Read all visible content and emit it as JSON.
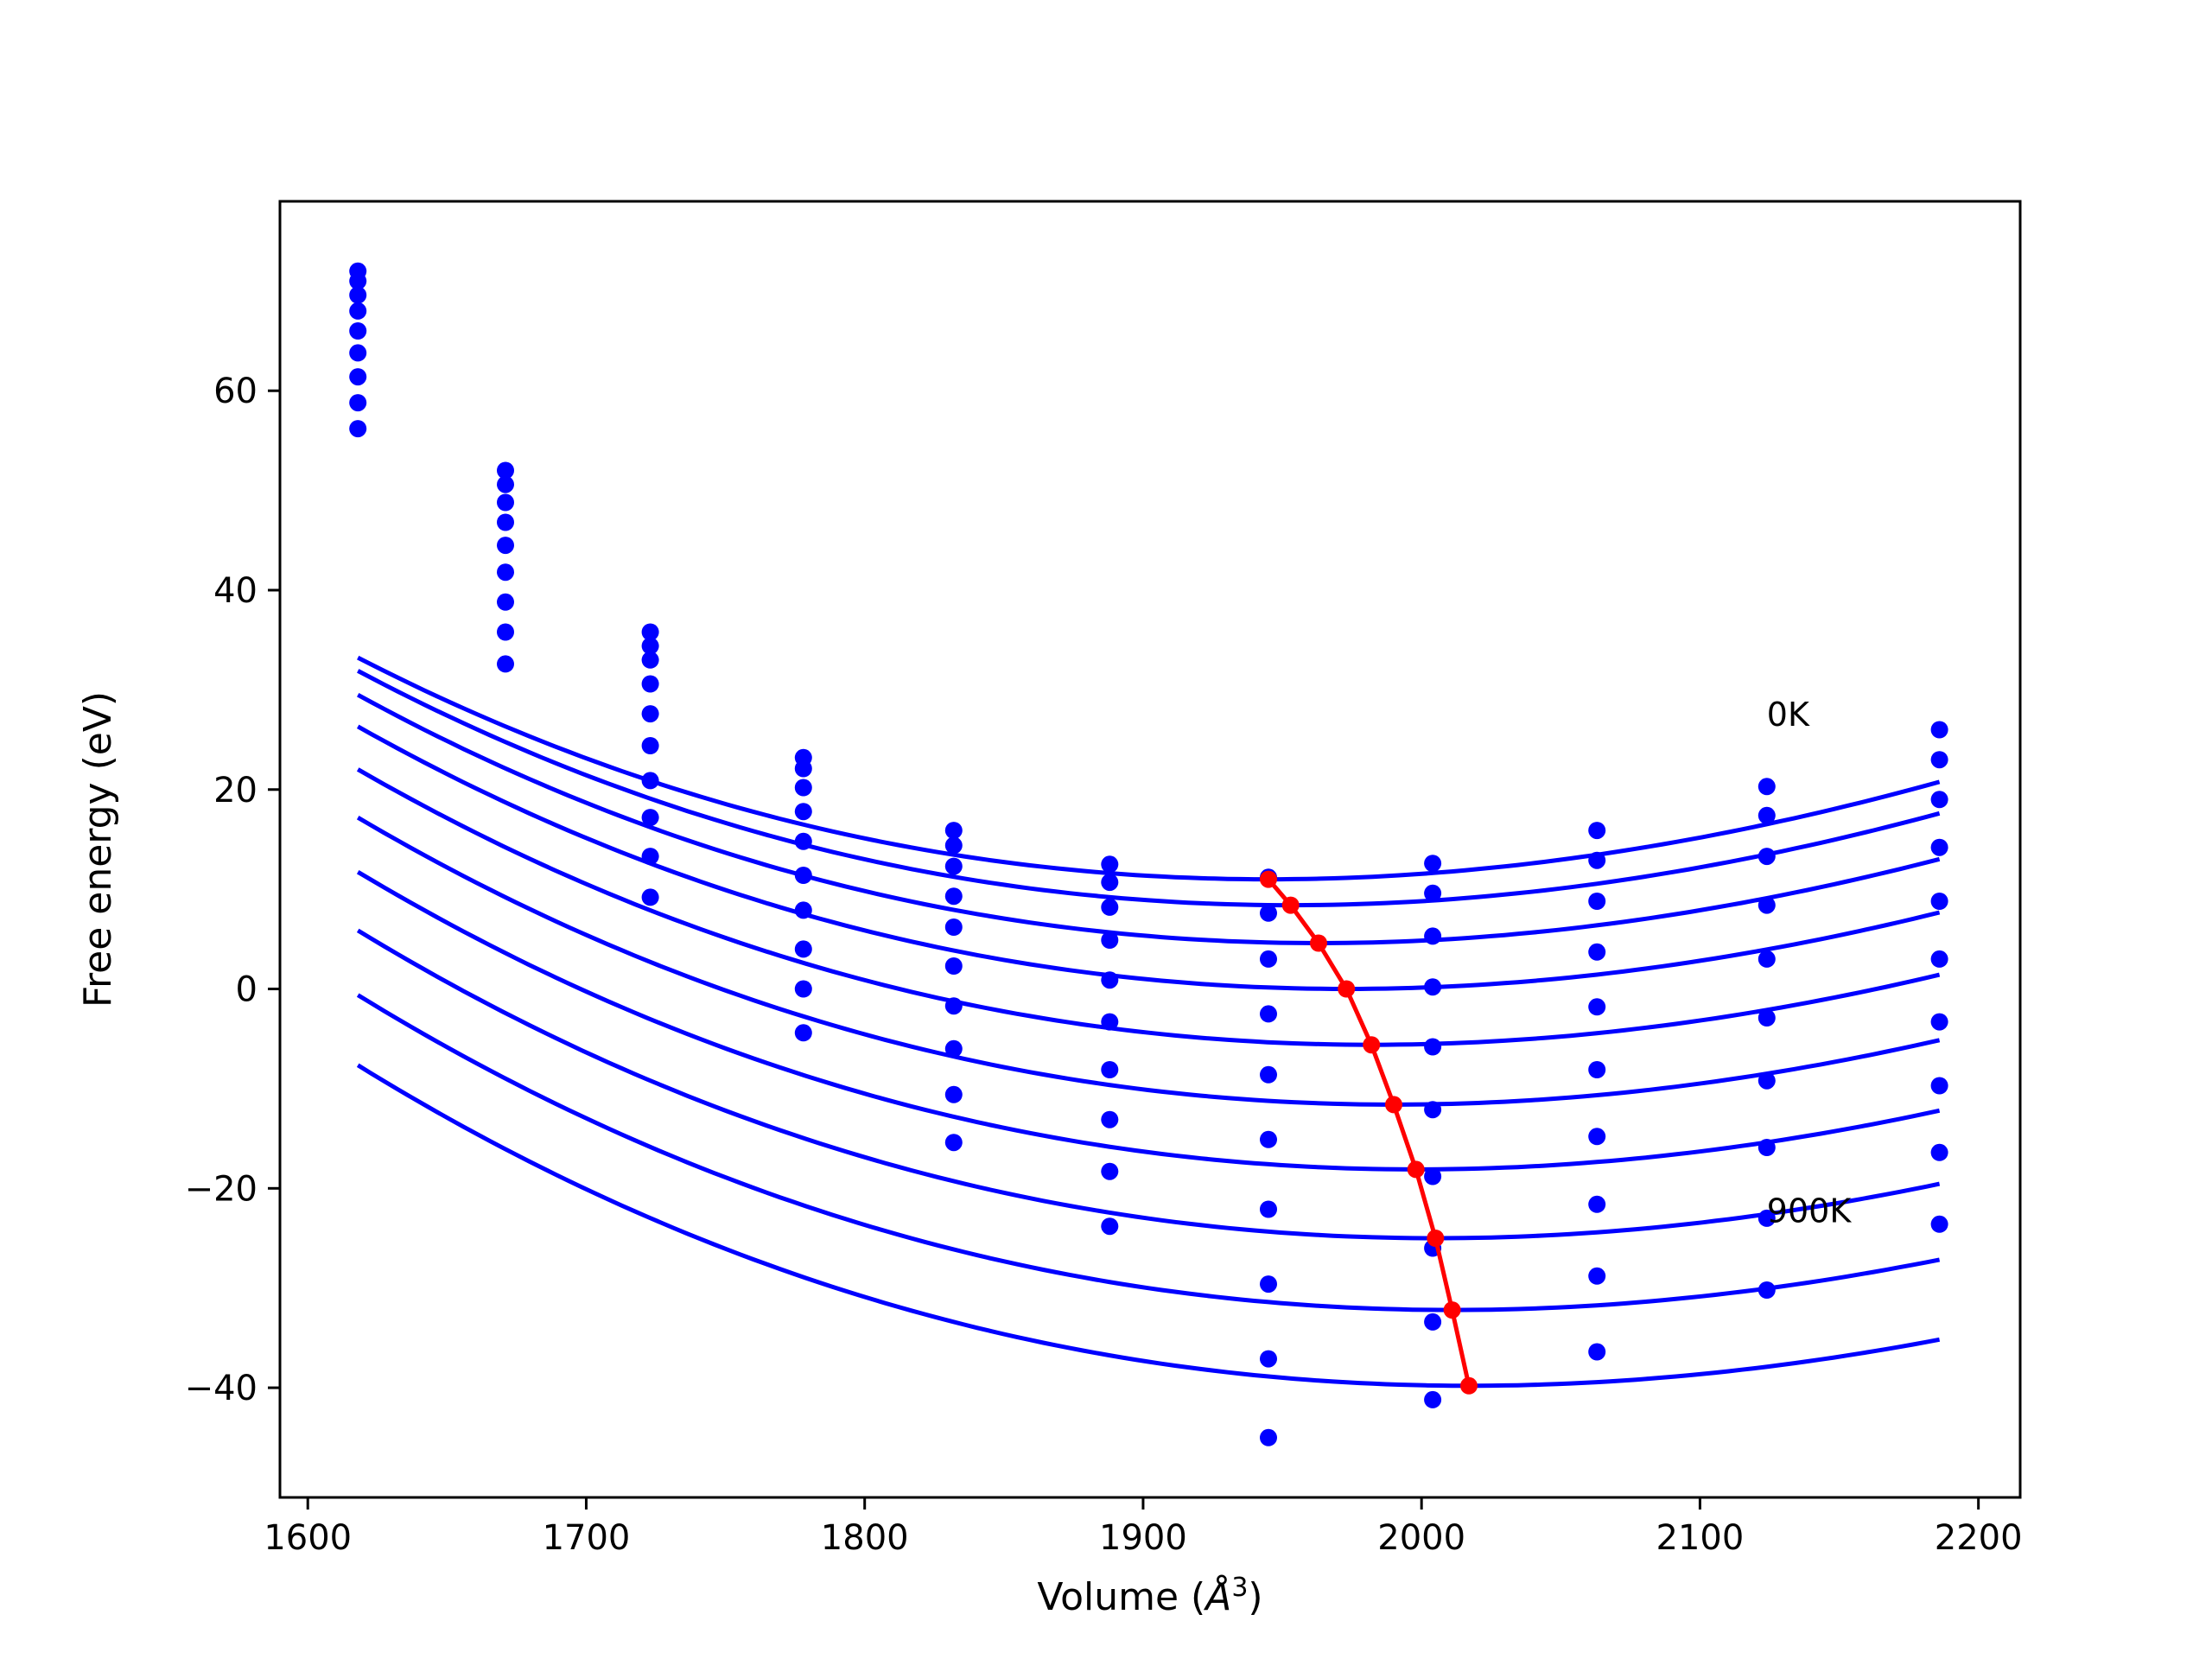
{
  "chart_data": {
    "type": "line",
    "title": "",
    "xlabel_text": "Volume (",
    "xlabel_unit": "Å",
    "xlabel_exp": "3",
    "xlabel_close": ")",
    "ylabel": "Free energy (eV)",
    "xlim": [
      1590,
      2215
    ],
    "ylim": [
      -51,
      79
    ],
    "xticks": [
      1600,
      1700,
      1800,
      1900,
      2000,
      2100,
      2200
    ],
    "yticks": [
      -40,
      -20,
      0,
      20,
      40,
      60
    ],
    "grid": false,
    "curve_color": "#0000ff",
    "min_color": "#ff0000",
    "volumes": [
      1618,
      1671,
      1723,
      1778,
      1832,
      1888,
      1945,
      2004,
      2063,
      2124,
      2186
    ],
    "series": [
      {
        "points": [
          72.0,
          52.0,
          35.8,
          23.2,
          15.9,
          12.5,
          11.2,
          12.6,
          15.9,
          20.3,
          26.0
        ]
      },
      {
        "points": [
          71.0,
          50.6,
          34.4,
          22.1,
          14.4,
          10.7,
          7.6,
          9.6,
          12.9,
          17.4,
          23.0
        ]
      },
      {
        "points": [
          69.6,
          48.8,
          33.0,
          20.2,
          12.3,
          8.2,
          3.0,
          5.3,
          8.8,
          13.3,
          19.0
        ]
      },
      {
        "points": [
          68.0,
          46.8,
          30.6,
          17.8,
          9.3,
          4.9,
          -2.5,
          0.2,
          3.7,
          8.4,
          14.2
        ]
      },
      {
        "points": [
          66.0,
          44.5,
          27.6,
          14.8,
          6.2,
          0.9,
          -8.6,
          -5.8,
          -1.8,
          3.0,
          8.8
        ]
      },
      {
        "points": [
          63.8,
          41.8,
          24.4,
          11.4,
          2.3,
          -3.3,
          -15.1,
          -12.1,
          -8.1,
          -2.9,
          3.0
        ]
      },
      {
        "points": [
          61.4,
          38.8,
          20.9,
          7.9,
          -1.7,
          -8.1,
          -22.1,
          -18.8,
          -14.8,
          -9.2,
          -3.3
        ]
      },
      {
        "points": [
          58.8,
          35.8,
          17.2,
          4.0,
          -6.0,
          -13.1,
          -29.6,
          -26.0,
          -21.6,
          -15.9,
          -9.7
        ]
      },
      {
        "points": [
          56.2,
          32.6,
          13.3,
          0.0,
          -10.6,
          -18.3,
          -37.1,
          -33.4,
          -28.8,
          -23.0,
          -16.4
        ]
      },
      {
        "points": [
          null,
          null,
          9.2,
          -4.4,
          -15.4,
          -23.8,
          -45.0,
          -41.2,
          -36.4,
          -30.2,
          -23.6
        ]
      }
    ],
    "fit_curves": [
      {
        "v0": 1945,
        "e0": 11.0,
        "a": 0.000185,
        "b": -7e-08
      },
      {
        "v0": 1953,
        "e0": 8.4,
        "a": 0.000186,
        "b": -7e-08
      },
      {
        "v0": 1963,
        "e0": 4.6,
        "a": 0.000185,
        "b": -7e-08
      },
      {
        "v0": 1973,
        "e0": 0.0,
        "a": 0.000184,
        "b": -7e-08
      },
      {
        "v0": 1982,
        "e0": -5.6,
        "a": 0.000183,
        "b": -7e-08
      },
      {
        "v0": 1990,
        "e0": -11.6,
        "a": 0.000182,
        "b": -7e-08
      },
      {
        "v0": 1998,
        "e0": -18.1,
        "a": 0.00018,
        "b": -7e-08
      },
      {
        "v0": 2005,
        "e0": -25.0,
        "a": 0.000179,
        "b": -7e-08
      },
      {
        "v0": 2011,
        "e0": -32.2,
        "a": 0.000177,
        "b": -7e-08
      },
      {
        "v0": 2017,
        "e0": -39.8,
        "a": 0.000174,
        "b": -7e-08
      }
    ],
    "minima": {
      "x": [
        1945,
        1953,
        1963,
        1973,
        1982,
        1990,
        1998,
        2005,
        2011,
        2017
      ],
      "y": [
        11.0,
        8.4,
        4.6,
        0.0,
        -5.6,
        -11.6,
        -18.1,
        -25.0,
        -32.2,
        -39.8
      ]
    },
    "annotations": [
      {
        "text": "0K",
        "x": 2124,
        "y": 26.4
      },
      {
        "text": "900K",
        "x": 2124,
        "y": -23.4
      }
    ]
  }
}
